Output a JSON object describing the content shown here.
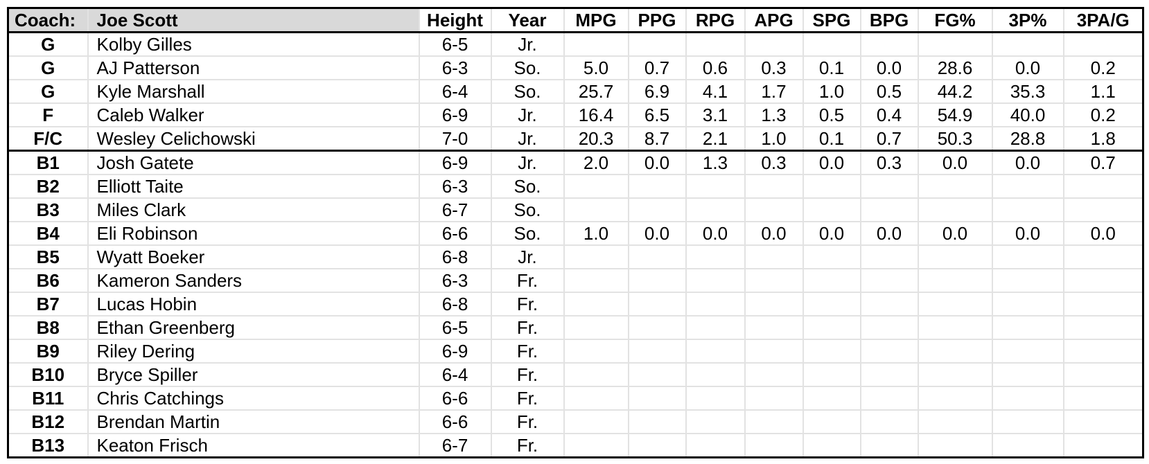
{
  "header": {
    "coach_label": "Coach:",
    "coach_name": "Joe Scott",
    "stat_columns": [
      "Height",
      "Year",
      "MPG",
      "PPG",
      "RPG",
      "APG",
      "SPG",
      "BPG",
      "FG%",
      "3P%",
      "3PA/G"
    ]
  },
  "players": [
    {
      "group": "starter",
      "pos": "G",
      "name": "Kolby Gilles",
      "height": "6-5",
      "year": "Jr.",
      "stats": [
        "",
        "",
        "",
        "",
        "",
        "",
        "",
        "",
        ""
      ]
    },
    {
      "group": "starter",
      "pos": "G",
      "name": "AJ Patterson",
      "height": "6-3",
      "year": "So.",
      "stats": [
        "5.0",
        "0.7",
        "0.6",
        "0.3",
        "0.1",
        "0.0",
        "28.6",
        "0.0",
        "0.2"
      ]
    },
    {
      "group": "starter",
      "pos": "G",
      "name": "Kyle Marshall",
      "height": "6-4",
      "year": "So.",
      "stats": [
        "25.7",
        "6.9",
        "4.1",
        "1.7",
        "1.0",
        "0.5",
        "44.2",
        "35.3",
        "1.1"
      ]
    },
    {
      "group": "starter",
      "pos": "F",
      "name": "Caleb Walker",
      "height": "6-9",
      "year": "Jr.",
      "stats": [
        "16.4",
        "6.5",
        "3.1",
        "1.3",
        "0.5",
        "0.4",
        "54.9",
        "40.0",
        "0.2"
      ]
    },
    {
      "group": "starter",
      "pos": "F/C",
      "name": "Wesley Celichowski",
      "height": "7-0",
      "year": "Jr.",
      "stats": [
        "20.3",
        "8.7",
        "2.1",
        "1.0",
        "0.1",
        "0.7",
        "50.3",
        "28.8",
        "1.8"
      ]
    },
    {
      "group": "bench",
      "pos": "B1",
      "name": "Josh Gatete",
      "height": "6-9",
      "year": "Jr.",
      "stats": [
        "2.0",
        "0.0",
        "1.3",
        "0.3",
        "0.0",
        "0.3",
        "0.0",
        "0.0",
        "0.7"
      ]
    },
    {
      "group": "bench",
      "pos": "B2",
      "name": "Elliott Taite",
      "height": "6-3",
      "year": "So.",
      "stats": [
        "",
        "",
        "",
        "",
        "",
        "",
        "",
        "",
        ""
      ]
    },
    {
      "group": "bench",
      "pos": "B3",
      "name": "Miles Clark",
      "height": "6-7",
      "year": "So.",
      "stats": [
        "",
        "",
        "",
        "",
        "",
        "",
        "",
        "",
        ""
      ]
    },
    {
      "group": "bench",
      "pos": "B4",
      "name": "Eli Robinson",
      "height": "6-6",
      "year": "So.",
      "stats": [
        "1.0",
        "0.0",
        "0.0",
        "0.0",
        "0.0",
        "0.0",
        "0.0",
        "0.0",
        "0.0"
      ]
    },
    {
      "group": "bench",
      "pos": "B5",
      "name": "Wyatt Boeker",
      "height": "6-8",
      "year": "Jr.",
      "stats": [
        "",
        "",
        "",
        "",
        "",
        "",
        "",
        "",
        ""
      ]
    },
    {
      "group": "bench",
      "pos": "B6",
      "name": "Kameron Sanders",
      "height": "6-3",
      "year": "Fr.",
      "stats": [
        "",
        "",
        "",
        "",
        "",
        "",
        "",
        "",
        ""
      ]
    },
    {
      "group": "bench",
      "pos": "B7",
      "name": "Lucas Hobin",
      "height": "6-8",
      "year": "Fr.",
      "stats": [
        "",
        "",
        "",
        "",
        "",
        "",
        "",
        "",
        ""
      ]
    },
    {
      "group": "bench",
      "pos": "B8",
      "name": "Ethan Greenberg",
      "height": "6-5",
      "year": "Fr.",
      "stats": [
        "",
        "",
        "",
        "",
        "",
        "",
        "",
        "",
        ""
      ]
    },
    {
      "group": "bench",
      "pos": "B9",
      "name": "Riley Dering",
      "height": "6-9",
      "year": "Fr.",
      "stats": [
        "",
        "",
        "",
        "",
        "",
        "",
        "",
        "",
        ""
      ]
    },
    {
      "group": "bench",
      "pos": "B10",
      "name": "Bryce Spiller",
      "height": "6-4",
      "year": "Fr.",
      "stats": [
        "",
        "",
        "",
        "",
        "",
        "",
        "",
        "",
        ""
      ]
    },
    {
      "group": "bench",
      "pos": "B11",
      "name": "Chris Catchings",
      "height": "6-6",
      "year": "Fr.",
      "stats": [
        "",
        "",
        "",
        "",
        "",
        "",
        "",
        "",
        ""
      ]
    },
    {
      "group": "bench",
      "pos": "B12",
      "name": "Brendan Martin",
      "height": "6-6",
      "year": "Fr.",
      "stats": [
        "",
        "",
        "",
        "",
        "",
        "",
        "",
        "",
        ""
      ]
    },
    {
      "group": "bench",
      "pos": "B13",
      "name": "Keaton Frisch",
      "height": "6-7",
      "year": "Fr.",
      "stats": [
        "",
        "",
        "",
        "",
        "",
        "",
        "",
        "",
        ""
      ]
    }
  ],
  "colors": {
    "header_fill": "#d9d9d9",
    "grid_line": "#e2e2e2",
    "thick_border": "#000000",
    "background": "#ffffff"
  }
}
